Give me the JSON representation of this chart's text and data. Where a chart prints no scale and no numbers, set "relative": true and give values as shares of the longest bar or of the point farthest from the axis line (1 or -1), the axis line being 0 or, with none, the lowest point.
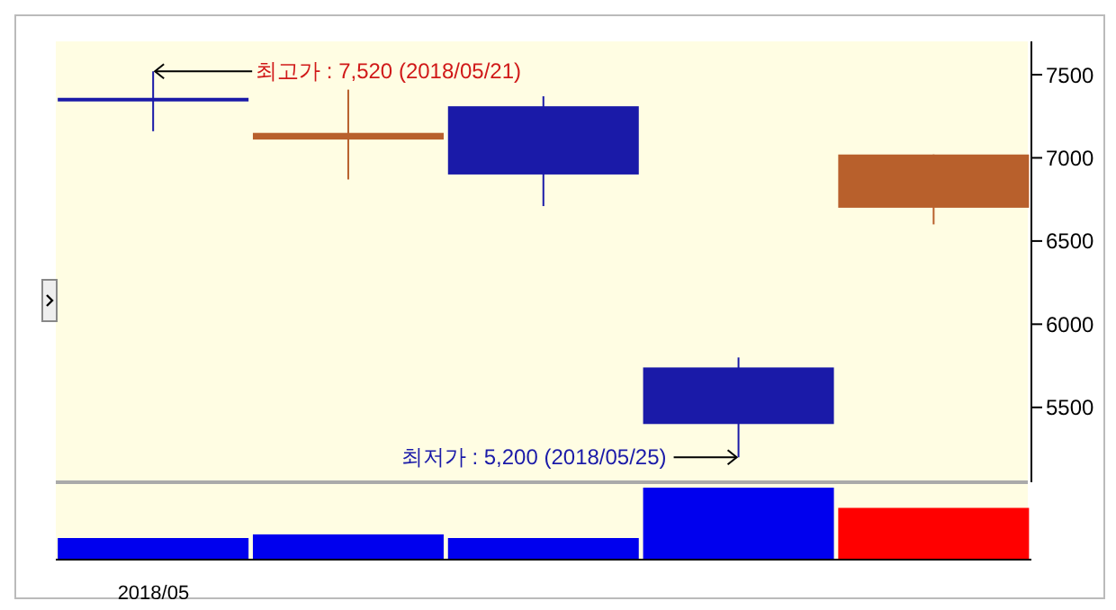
{
  "chart_data": [
    {
      "type": "candlestick",
      "categories": [
        null,
        null,
        null,
        null,
        null
      ],
      "tick_labels": "y",
      "ohlc": [
        [
          7350,
          7520,
          7160,
          7350
        ],
        [
          7110,
          7410,
          6870,
          7150
        ],
        [
          7310,
          7370,
          6710,
          6900
        ],
        [
          5740,
          5800,
          5200,
          5400
        ],
        [
          6700,
          7020,
          6600,
          7020
        ]
      ],
      "colors": [
        "#1a1aa8",
        "#b8602c",
        "#1a1aa8",
        "#1a1aa8",
        "#b8602c"
      ],
      "ylim": [
        5050,
        7700
      ],
      "yticks": [
        5500,
        6000,
        6500,
        7000,
        7500
      ],
      "grid": false,
      "legend": false,
      "annotations": [
        "최고가 : 7,520 (2018/05/21)",
        "최저가 : 5,200 (2018/05/25)"
      ]
    },
    {
      "type": "bar",
      "categories": [
        "2018/05",
        null,
        null,
        null,
        null
      ],
      "relative": true,
      "tick_labels": "x",
      "values": [
        0.3,
        0.35,
        0.3,
        1,
        0.72
      ],
      "colors": [
        "#0000ee",
        "#0000ee",
        "#0000ee",
        "#0000ee",
        "#ff0000"
      ],
      "grid": false,
      "legend": false
    }
  ]
}
